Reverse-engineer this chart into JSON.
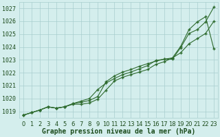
{
  "title": "Graphe pression niveau de la mer (hPa)",
  "x_hours": [
    0,
    1,
    2,
    3,
    4,
    5,
    6,
    7,
    8,
    9,
    10,
    11,
    12,
    13,
    14,
    15,
    16,
    17,
    18,
    19,
    20,
    21,
    22,
    23
  ],
  "line1": [
    1018.7,
    1018.9,
    1019.1,
    1019.35,
    1019.25,
    1019.35,
    1019.6,
    1019.7,
    1019.85,
    1020.15,
    1021.3,
    1021.75,
    1022.05,
    1022.25,
    1022.5,
    1022.7,
    1022.9,
    1023.05,
    1023.05,
    1023.95,
    1025.05,
    1025.35,
    1025.95,
    1027.1
  ],
  "line2": [
    1018.7,
    1018.9,
    1019.1,
    1019.35,
    1019.25,
    1019.35,
    1019.55,
    1019.55,
    1019.65,
    1019.95,
    1020.65,
    1021.35,
    1021.65,
    1021.85,
    1022.05,
    1022.25,
    1022.65,
    1022.85,
    1023.15,
    1023.55,
    1024.25,
    1024.65,
    1025.05,
    1026.0
  ],
  "line3": [
    1018.7,
    1018.9,
    1019.1,
    1019.35,
    1019.25,
    1019.35,
    1019.6,
    1019.8,
    1020.0,
    1020.7,
    1021.2,
    1021.55,
    1021.85,
    1022.05,
    1022.3,
    1022.55,
    1022.95,
    1023.05,
    1023.15,
    1024.05,
    1025.35,
    1025.95,
    1026.35,
    1023.85
  ],
  "line_color": "#2d6a2d",
  "marker_color": "#2d6a2d",
  "bg_color": "#d4eeed",
  "grid_color": "#a8cece",
  "ylim_min": 1018.5,
  "ylim_max": 1027.5,
  "yticks": [
    1019,
    1020,
    1021,
    1022,
    1023,
    1024,
    1025,
    1026,
    1027
  ],
  "text_color": "#1a4a1a",
  "label_fontsize": 7.0,
  "tick_fontsize": 6.0,
  "linewidth": 0.8,
  "markersize": 3.5
}
